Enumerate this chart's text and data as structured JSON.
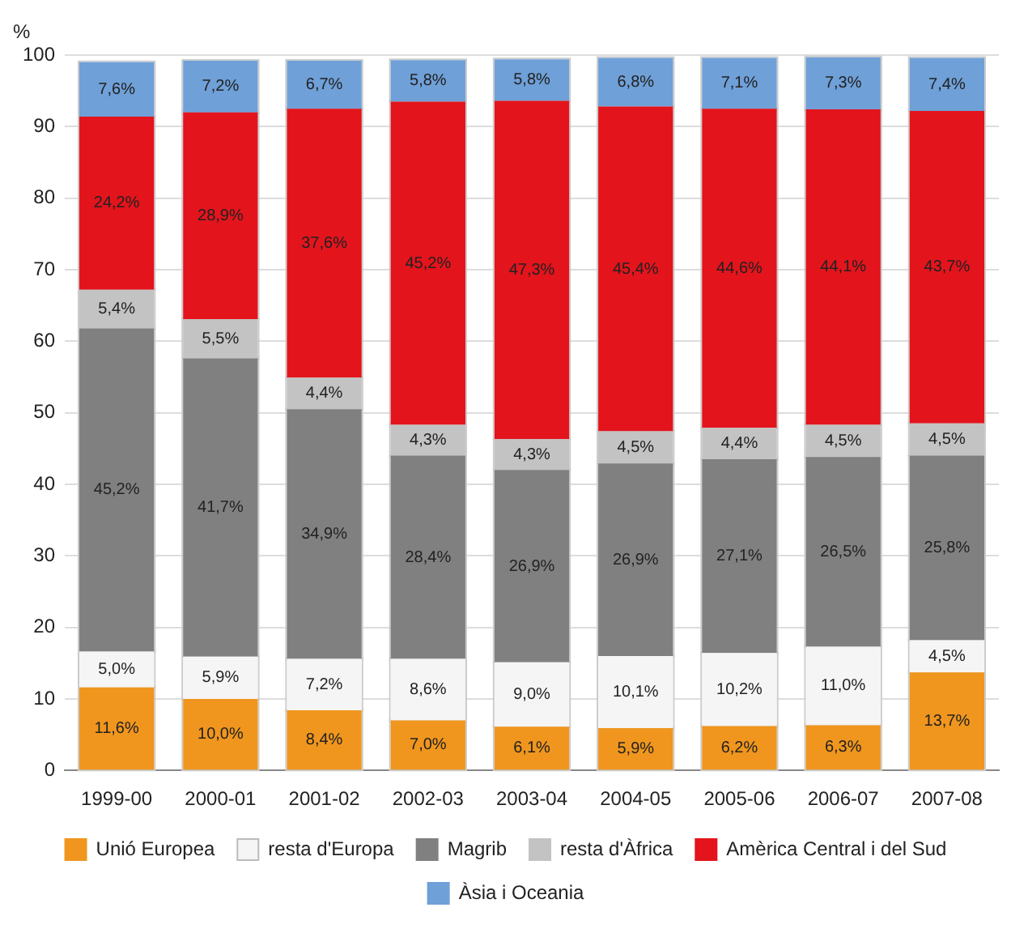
{
  "chart_data": {
    "type": "bar",
    "stacked": true,
    "ylabel": "%",
    "categories": [
      "1999-00",
      "2000-01",
      "2001-02",
      "2002-03",
      "2003-04",
      "2004-05",
      "2005-06",
      "2006-07",
      "2007-08"
    ],
    "ylim": [
      0,
      100
    ],
    "yticks": [
      0,
      10,
      20,
      30,
      40,
      50,
      60,
      70,
      80,
      90,
      100
    ],
    "grid": "y",
    "legend": "bottom",
    "series": [
      {
        "name": "Unió Europea",
        "color": "#f0961e",
        "values": [
          11.6,
          10.0,
          8.4,
          7.0,
          6.1,
          5.9,
          6.2,
          6.3,
          13.7
        ],
        "value_labels": [
          "11,6%",
          "10,0%",
          "8,4%",
          "7,0%",
          "6,1%",
          "5,9%",
          "6,2%",
          "6,3%",
          "13,7%"
        ]
      },
      {
        "name": "resta d'Europa",
        "color": "#f5f5f5",
        "values": [
          5.0,
          5.9,
          7.2,
          8.6,
          9.0,
          10.1,
          10.2,
          11.0,
          4.5
        ],
        "value_labels": [
          "5,0%",
          "5,9%",
          "7,2%",
          "8,6%",
          "9,0%",
          "10,1%",
          "10,2%",
          "11,0%",
          "4,5%"
        ]
      },
      {
        "name": "Magrib",
        "color": "#808080",
        "values": [
          45.2,
          41.7,
          34.9,
          28.4,
          26.9,
          26.9,
          27.1,
          26.5,
          25.8
        ],
        "value_labels": [
          "45,2%",
          "41,7%",
          "34,9%",
          "28,4%",
          "26,9%",
          "26,9%",
          "27,1%",
          "26,5%",
          "25,8%"
        ]
      },
      {
        "name": "resta d'Àfrica",
        "color": "#c3c3c3",
        "values": [
          5.4,
          5.5,
          4.4,
          4.3,
          4.3,
          4.5,
          4.4,
          4.5,
          4.5
        ],
        "value_labels": [
          "5,4%",
          "5,5%",
          "4,4%",
          "4,3%",
          "4,3%",
          "4,5%",
          "4,4%",
          "4,5%",
          "4,5%"
        ]
      },
      {
        "name": "Amèrica Central i del Sud",
        "color": "#e3141c",
        "values": [
          24.2,
          28.9,
          37.6,
          45.2,
          47.3,
          45.4,
          44.6,
          44.1,
          43.7
        ],
        "value_labels": [
          "24,2%",
          "28,9%",
          "37,6%",
          "45,2%",
          "47,3%",
          "45,4%",
          "44,6%",
          "44,1%",
          "43,7%"
        ]
      },
      {
        "name": "Àsia i Oceania",
        "color": "#6fa0d8",
        "values": [
          7.6,
          7.2,
          6.7,
          5.8,
          5.8,
          6.8,
          7.1,
          7.3,
          7.4
        ],
        "value_labels": [
          "7,6%",
          "7,2%",
          "6,7%",
          "5,8%",
          "5,8%",
          "6,8%",
          "7,1%",
          "7,3%",
          "7,4%"
        ]
      }
    ]
  }
}
